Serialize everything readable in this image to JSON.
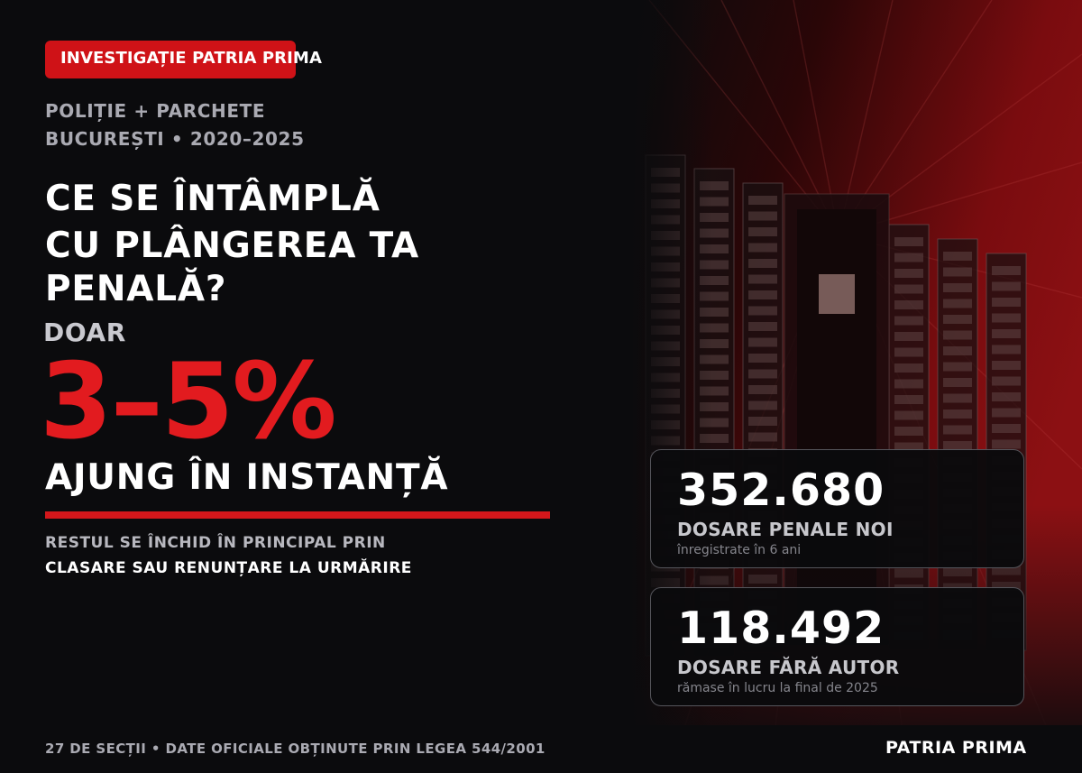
{
  "badge": {
    "label": "INVESTIGAȚIE PATRIA PRIMA"
  },
  "subtitle": {
    "line1": "POLIȚIE + PARCHETE",
    "line2": "BUCUREȘTI • 2020–2025"
  },
  "headline": {
    "line1": "CE SE ÎNTÂMPLĂ",
    "line2": "CU PLÂNGEREA TA",
    "line3": "PENALĂ?"
  },
  "highlight": {
    "prefix": "DOAR",
    "value": "3–5%",
    "suffix": "AJUNG ÎN INSTANȚĂ",
    "note_line1": "RESTUL SE ÎNCHID ÎN PRINCIPAL PRIN",
    "note_line2": "CLASARE SAU RENUNȚARE LA URMĂRIRE"
  },
  "stats": [
    {
      "number": "352.680",
      "label": "DOSARE PENALE NOI",
      "note": "înregistrate în 6 ani"
    },
    {
      "number": "118.492",
      "label": "DOSARE FĂRĂ AUTOR",
      "note": "rămase în lucru la final de 2025"
    }
  ],
  "footer": {
    "source": "27 DE SECȚII • DATE OFICIALE OBȚINUTE PRIN LEGEA 544/2001",
    "brand": "PATRIA PRIMA"
  },
  "colors": {
    "accent_red": "#e21b1f",
    "background": "#0b0b0d",
    "badge_red": "#cf1217"
  },
  "artwork": {
    "name": "file-archive-shelves-illustration"
  }
}
